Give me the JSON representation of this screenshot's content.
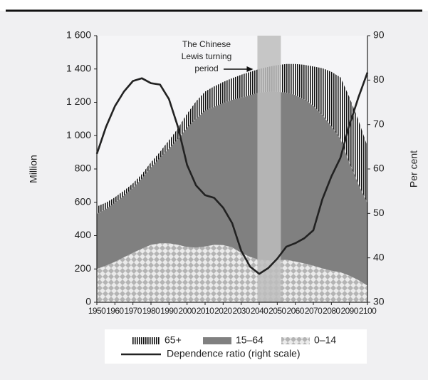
{
  "chart_data": {
    "type": "area",
    "y_label": "Million",
    "y2_label": "Per cent",
    "annotation": [
      "The Chinese",
      "Lewis turning",
      "period"
    ],
    "band": [
      2039,
      2052
    ],
    "band_color": "#bdbdbd",
    "x": [
      1950,
      1955,
      1960,
      1965,
      1970,
      1975,
      1980,
      1985,
      1990,
      1995,
      2000,
      2005,
      2010,
      2015,
      2020,
      2025,
      2030,
      2035,
      2040,
      2045,
      2050,
      2055,
      2060,
      2065,
      2070,
      2075,
      2080,
      2085,
      2090,
      2095,
      2100
    ],
    "xlim": [
      1950,
      2100
    ],
    "xticks": [
      1950,
      1960,
      1970,
      1980,
      1990,
      2000,
      2010,
      2020,
      2030,
      2040,
      2050,
      2060,
      2070,
      2080,
      2090,
      2100
    ],
    "ylim": [
      0,
      1600
    ],
    "yticks": [
      0,
      200,
      400,
      600,
      800,
      {
        "value": 1000,
        "label": "1 000"
      },
      {
        "value": 1200,
        "label": "1 200"
      },
      {
        "value": 1400,
        "label": "1 400"
      },
      {
        "value": 1600,
        "label": "1 600"
      }
    ],
    "y2lim": [
      30,
      90
    ],
    "y2ticks": [
      30,
      40,
      50,
      60,
      70,
      80,
      90
    ],
    "grid": false,
    "series": [
      {
        "name": "0–14",
        "type": "area",
        "pattern": "checker",
        "color": "#b4b4b4",
        "values": [
          200,
          220,
          243,
          270,
          297,
          322,
          345,
          354,
          354,
          345,
          332,
          328,
          335,
          345,
          343,
          330,
          297,
          272,
          255,
          252,
          252,
          255,
          245,
          233,
          220,
          203,
          190,
          180,
          160,
          133,
          100
        ]
      },
      {
        "name": "15–64",
        "type": "area",
        "pattern": "solid",
        "color": "#808080",
        "values": [
          330,
          340,
          354,
          370,
          390,
          421,
          465,
          513,
          569,
          635,
          715,
          775,
          815,
          828,
          852,
          885,
          931,
          971,
          1003,
          1011,
          1011,
          1003,
          998,
          984,
          960,
          920,
          867,
          800,
          677,
          575,
          495
        ]
      },
      {
        "name": "65+",
        "type": "area",
        "pattern": "stripes",
        "color": "#111111",
        "values": [
          45,
          38,
          33,
          30,
          26,
          27,
          30,
          36,
          49,
          65,
          85,
          102,
          115,
          122,
          127,
          130,
          137,
          140,
          142,
          150,
          160,
          172,
          187,
          208,
          235,
          282,
          326,
          370,
          393,
          384,
          340
        ]
      },
      {
        "name": "Dependence ratio (right scale)",
        "type": "line",
        "axis": "y2",
        "color": "#222222",
        "values": [
          63.4,
          69.4,
          74.1,
          77.4,
          79.8,
          80.4,
          79.3,
          79.0,
          75.7,
          69.4,
          60.9,
          56.3,
          54.1,
          53.5,
          51.3,
          47.8,
          41.6,
          38.0,
          36.4,
          37.7,
          39.8,
          42.5,
          43.3,
          44.4,
          46.2,
          53.2,
          58.3,
          62.5,
          69.9,
          76.1,
          81.7
        ]
      }
    ]
  }
}
